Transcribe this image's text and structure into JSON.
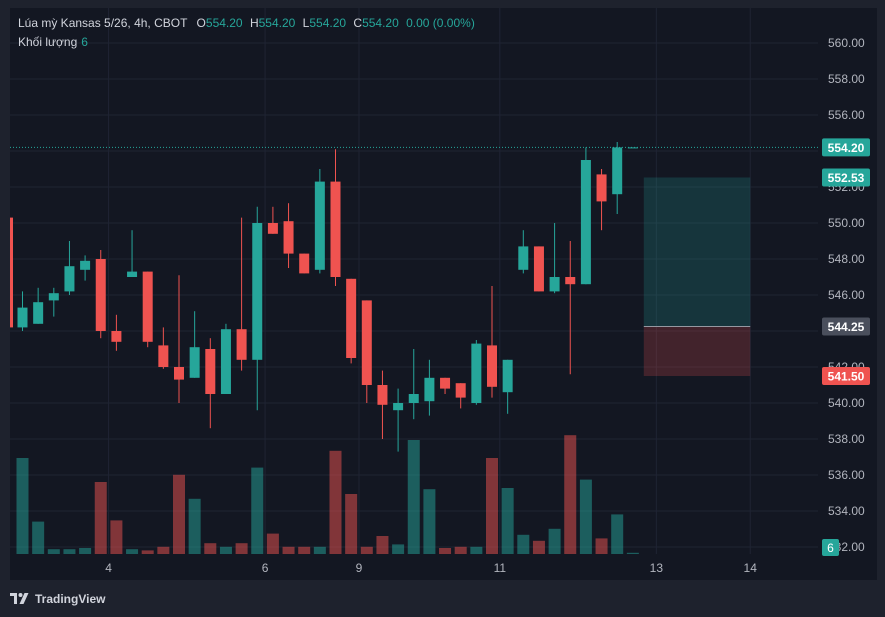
{
  "header": {
    "symbol": "Lúa mỳ Kansas 5/26, 4h, CBOT",
    "o_label": "O",
    "o_value": "554.20",
    "h_label": "H",
    "h_value": "554.20",
    "l_label": "L",
    "l_value": "554.20",
    "c_label": "C",
    "c_value": "554.20",
    "change": "0.00 (0.00%)"
  },
  "volume_legend": {
    "label": "Khối lượng",
    "value": "6"
  },
  "brand": {
    "name": "TradingView",
    "icon": "tradingview-logo-icon"
  },
  "colors": {
    "up": "#26a69a",
    "down": "#ef5350",
    "background": "#131722",
    "grid": "#1f2433",
    "text": "#b2b5be"
  },
  "chart_data": {
    "type": "candlestick",
    "y_axis": {
      "range": [
        531.5,
        561.0
      ],
      "ticks": [
        "560.00",
        "558.00",
        "556.00",
        "554.00",
        "552.00",
        "550.00",
        "548.00",
        "546.00",
        "544.00",
        "542.00",
        "540.00",
        "538.00",
        "536.00",
        "534.00",
        "532.00"
      ]
    },
    "x_labels": [
      {
        "label": "4",
        "index": 5.5
      },
      {
        "label": "6",
        "index": 15.5
      },
      {
        "label": "9",
        "index": 21.5
      },
      {
        "label": "11",
        "index": 30.5
      },
      {
        "label": "13",
        "index": 40.5
      },
      {
        "label": "14",
        "index": 46.5
      }
    ],
    "candles": [
      {
        "o": 544.2,
        "h": 546.2,
        "l": 544.0,
        "c": 545.3
      },
      {
        "o": 544.4,
        "h": 546.4,
        "l": 544.4,
        "c": 545.6
      },
      {
        "o": 545.7,
        "h": 546.4,
        "l": 544.8,
        "c": 546.1
      },
      {
        "o": 546.2,
        "h": 549.0,
        "l": 546.0,
        "c": 547.6
      },
      {
        "o": 547.4,
        "h": 548.2,
        "l": 546.8,
        "c": 547.9
      },
      {
        "o": 548.0,
        "h": 548.5,
        "l": 543.6,
        "c": 544.0
      },
      {
        "o": 544.0,
        "h": 544.9,
        "l": 542.9,
        "c": 543.4
      },
      {
        "o": 547.0,
        "h": 549.6,
        "l": 547.0,
        "c": 547.3
      },
      {
        "o": 547.3,
        "h": 547.3,
        "l": 543.1,
        "c": 543.4
      },
      {
        "o": 543.2,
        "h": 544.2,
        "l": 541.9,
        "c": 542.0
      },
      {
        "o": 542.0,
        "h": 547.1,
        "l": 540.0,
        "c": 541.3
      },
      {
        "o": 541.4,
        "h": 545.1,
        "l": 541.4,
        "c": 543.1
      },
      {
        "o": 543.0,
        "h": 543.6,
        "l": 538.6,
        "c": 540.5
      },
      {
        "o": 540.5,
        "h": 544.4,
        "l": 540.5,
        "c": 544.1
      },
      {
        "o": 544.1,
        "h": 550.3,
        "l": 541.8,
        "c": 542.4
      },
      {
        "o": 542.4,
        "h": 550.9,
        "l": 539.6,
        "c": 550.0
      },
      {
        "o": 550.0,
        "h": 550.9,
        "l": 549.4,
        "c": 549.4
      },
      {
        "o": 550.1,
        "h": 551.1,
        "l": 547.5,
        "c": 548.3
      },
      {
        "o": 548.3,
        "h": 548.3,
        "l": 547.2,
        "c": 547.2
      },
      {
        "o": 547.4,
        "h": 553.0,
        "l": 547.2,
        "c": 552.3
      },
      {
        "o": 552.3,
        "h": 554.1,
        "l": 546.5,
        "c": 547.0
      },
      {
        "o": 546.9,
        "h": 546.9,
        "l": 542.2,
        "c": 542.5
      },
      {
        "o": 545.7,
        "h": 545.7,
        "l": 540.0,
        "c": 541.0
      },
      {
        "o": 541.0,
        "h": 541.8,
        "l": 538.0,
        "c": 539.9
      },
      {
        "o": 539.6,
        "h": 540.8,
        "l": 537.3,
        "c": 540.0
      },
      {
        "o": 540.0,
        "h": 543.0,
        "l": 539.1,
        "c": 540.5
      },
      {
        "o": 540.1,
        "h": 542.4,
        "l": 539.3,
        "c": 541.4
      },
      {
        "o": 541.4,
        "h": 541.4,
        "l": 540.5,
        "c": 540.8
      },
      {
        "o": 541.1,
        "h": 541.1,
        "l": 539.7,
        "c": 540.3
      },
      {
        "o": 540.0,
        "h": 543.5,
        "l": 539.9,
        "c": 543.3
      },
      {
        "o": 543.2,
        "h": 546.5,
        "l": 540.3,
        "c": 540.9
      },
      {
        "o": 540.6,
        "h": 542.4,
        "l": 539.4,
        "c": 542.4
      },
      {
        "o": 547.4,
        "h": 549.6,
        "l": 547.2,
        "c": 548.7
      },
      {
        "o": 548.7,
        "h": 548.7,
        "l": 546.2,
        "c": 546.2
      },
      {
        "o": 546.2,
        "h": 550.0,
        "l": 546.1,
        "c": 547.0
      },
      {
        "o": 547.0,
        "h": 549.0,
        "l": 541.6,
        "c": 546.6
      },
      {
        "o": 546.6,
        "h": 554.2,
        "l": 546.6,
        "c": 553.5
      },
      {
        "o": 552.7,
        "h": 553.0,
        "l": 549.6,
        "c": 551.2
      },
      {
        "o": 551.6,
        "h": 554.5,
        "l": 550.5,
        "c": 554.2
      },
      {
        "o": 554.2,
        "h": 554.2,
        "l": 554.2,
        "c": 554.2
      }
    ],
    "volume": {
      "range": [
        0,
        100
      ],
      "values": [
        80,
        27,
        4,
        4,
        5,
        60,
        28,
        4,
        3,
        6,
        66,
        46,
        9,
        6,
        9,
        72,
        17,
        6,
        6,
        6,
        86,
        50,
        6,
        15,
        8,
        95,
        54,
        5,
        6,
        6,
        80,
        55,
        16,
        11,
        21,
        99,
        62,
        13,
        33,
        1
      ]
    },
    "last_price": {
      "value": "554.20",
      "dotted_line": true
    },
    "price_labels": [
      {
        "value": "554.20",
        "kind": "last"
      },
      {
        "value": "552.53",
        "kind": "target"
      },
      {
        "value": "544.25",
        "kind": "entry"
      },
      {
        "value": "541.50",
        "kind": "stop"
      }
    ],
    "volume_label": "6",
    "position_tool": {
      "type": "long",
      "entry": 544.25,
      "target": 552.53,
      "stop": 541.5,
      "start_index": 39.7,
      "end_index": 46.5
    }
  }
}
